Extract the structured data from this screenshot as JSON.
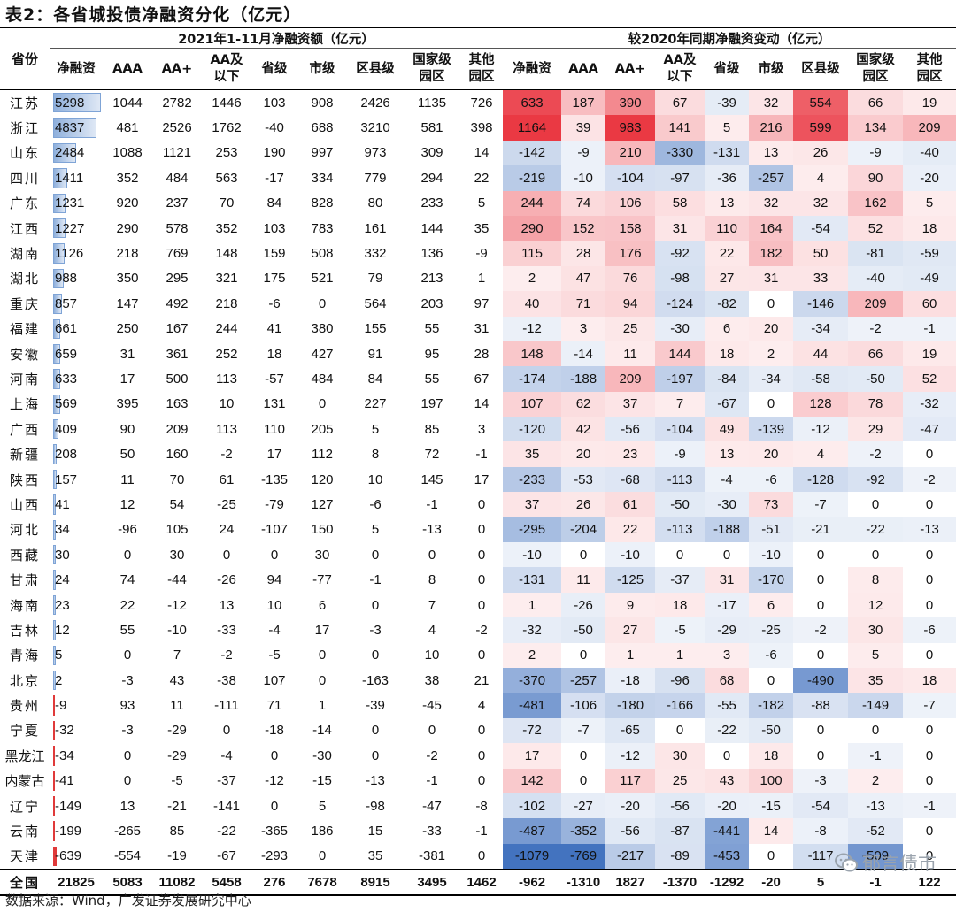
{
  "title": "表2：各省城投债净融资分化（亿元）",
  "source": "数据来源：Wind，广发证券发展研究中心",
  "watermark": "郁言债市",
  "header": {
    "province": "省份",
    "group_left": "2021年1-11月净融资额（亿元）",
    "group_right": "较2020年同期净融资变动（亿元）",
    "cols": [
      "净融资",
      "AAA",
      "AA+",
      "AA及以下",
      "省级",
      "市级",
      "区县级",
      "国家级园区",
      "其他园区"
    ]
  },
  "colors": {
    "pos": "#e8232f",
    "neg": "#2f64b8",
    "bar_pos": "#7fa4d6",
    "bar_neg": "#e03a3a"
  },
  "rows": [
    {
      "p": "江苏",
      "a": [
        5298,
        1044,
        2782,
        1446,
        103,
        908,
        2426,
        1135,
        726
      ],
      "c": [
        633,
        187,
        390,
        67,
        -39,
        32,
        554,
        66,
        19
      ]
    },
    {
      "p": "浙江",
      "a": [
        4837,
        481,
        2526,
        1762,
        -40,
        688,
        3210,
        581,
        398
      ],
      "c": [
        1164,
        39,
        983,
        141,
        5,
        216,
        599,
        134,
        209
      ]
    },
    {
      "p": "山东",
      "a": [
        2484,
        1088,
        1121,
        253,
        190,
        997,
        973,
        309,
        14
      ],
      "c": [
        -142,
        -9,
        210,
        -330,
        -131,
        13,
        26,
        -9,
        -40
      ]
    },
    {
      "p": "四川",
      "a": [
        1411,
        352,
        484,
        563,
        -17,
        334,
        779,
        294,
        22
      ],
      "c": [
        -219,
        -10,
        -104,
        -97,
        -36,
        -257,
        4,
        90,
        -20
      ]
    },
    {
      "p": "广东",
      "a": [
        1231,
        920,
        237,
        70,
        84,
        828,
        80,
        233,
        5
      ],
      "c": [
        244,
        74,
        106,
        58,
        13,
        32,
        32,
        162,
        5
      ]
    },
    {
      "p": "江西",
      "a": [
        1227,
        290,
        578,
        352,
        103,
        783,
        161,
        144,
        35
      ],
      "c": [
        290,
        152,
        158,
        31,
        110,
        164,
        -54,
        52,
        18
      ]
    },
    {
      "p": "湖南",
      "a": [
        1126,
        218,
        769,
        148,
        159,
        508,
        332,
        136,
        -9
      ],
      "c": [
        115,
        28,
        176,
        -92,
        22,
        182,
        50,
        -81,
        -59
      ]
    },
    {
      "p": "湖北",
      "a": [
        988,
        350,
        295,
        321,
        175,
        521,
        79,
        213,
        1
      ],
      "c": [
        2,
        47,
        76,
        -98,
        27,
        31,
        33,
        -40,
        -49
      ]
    },
    {
      "p": "重庆",
      "a": [
        857,
        147,
        492,
        218,
        -6,
        0,
        564,
        203,
        97
      ],
      "c": [
        40,
        71,
        94,
        -124,
        -82,
        0,
        -146,
        209,
        60
      ]
    },
    {
      "p": "福建",
      "a": [
        661,
        250,
        167,
        244,
        41,
        380,
        155,
        55,
        31
      ],
      "c": [
        -12,
        3,
        25,
        -30,
        6,
        20,
        -34,
        -2,
        -1
      ]
    },
    {
      "p": "安徽",
      "a": [
        659,
        31,
        361,
        252,
        18,
        427,
        91,
        95,
        28
      ],
      "c": [
        148,
        -14,
        11,
        144,
        18,
        2,
        44,
        66,
        19
      ]
    },
    {
      "p": "河南",
      "a": [
        633,
        17,
        500,
        113,
        -57,
        484,
        84,
        55,
        67
      ],
      "c": [
        -174,
        -188,
        209,
        -197,
        -84,
        -34,
        -58,
        -50,
        52
      ]
    },
    {
      "p": "上海",
      "a": [
        569,
        395,
        163,
        10,
        131,
        0,
        227,
        197,
        14
      ],
      "c": [
        107,
        62,
        37,
        7,
        -67,
        0,
        128,
        78,
        -32
      ]
    },
    {
      "p": "广西",
      "a": [
        409,
        90,
        209,
        113,
        110,
        205,
        5,
        85,
        3
      ],
      "c": [
        -120,
        42,
        -56,
        -104,
        49,
        -139,
        -12,
        29,
        -47
      ]
    },
    {
      "p": "新疆",
      "a": [
        208,
        50,
        160,
        -2,
        17,
        112,
        8,
        72,
        -1
      ],
      "c": [
        35,
        20,
        23,
        -9,
        13,
        20,
        4,
        -2,
        0
      ]
    },
    {
      "p": "陕西",
      "a": [
        157,
        11,
        70,
        61,
        -135,
        120,
        10,
        145,
        17
      ],
      "c": [
        -233,
        -53,
        -68,
        -113,
        -4,
        -6,
        -128,
        -92,
        -2
      ]
    },
    {
      "p": "山西",
      "a": [
        41,
        12,
        54,
        -25,
        -79,
        127,
        -6,
        -1,
        0
      ],
      "c": [
        37,
        26,
        61,
        -50,
        -30,
        73,
        -7,
        0,
        0
      ]
    },
    {
      "p": "河北",
      "a": [
        34,
        -96,
        105,
        24,
        -107,
        150,
        5,
        -13,
        0
      ],
      "c": [
        -295,
        -204,
        22,
        -113,
        -188,
        -51,
        -21,
        -22,
        -13
      ]
    },
    {
      "p": "西藏",
      "a": [
        30,
        0,
        30,
        0,
        0,
        30,
        0,
        0,
        0
      ],
      "c": [
        -10,
        0,
        -10,
        0,
        0,
        -10,
        0,
        0,
        0
      ]
    },
    {
      "p": "甘肃",
      "a": [
        24,
        74,
        -44,
        -26,
        94,
        -77,
        -1,
        8,
        0
      ],
      "c": [
        -131,
        11,
        -125,
        -37,
        31,
        -170,
        0,
        8,
        0
      ]
    },
    {
      "p": "海南",
      "a": [
        23,
        22,
        -12,
        13,
        10,
        6,
        0,
        7,
        0
      ],
      "c": [
        1,
        -26,
        9,
        18,
        -17,
        6,
        0,
        12,
        0
      ]
    },
    {
      "p": "吉林",
      "a": [
        12,
        55,
        -10,
        -33,
        -4,
        17,
        -3,
        4,
        -2
      ],
      "c": [
        -32,
        -50,
        27,
        -5,
        -29,
        -25,
        -2,
        30,
        -6
      ]
    },
    {
      "p": "青海",
      "a": [
        5,
        0,
        7,
        -2,
        -5,
        0,
        0,
        10,
        0
      ],
      "c": [
        2,
        0,
        1,
        1,
        3,
        -6,
        0,
        5,
        0
      ]
    },
    {
      "p": "北京",
      "a": [
        2,
        -3,
        43,
        -38,
        107,
        0,
        -163,
        38,
        21
      ],
      "c": [
        -370,
        -257,
        -18,
        -96,
        68,
        0,
        -490,
        35,
        18
      ]
    },
    {
      "p": "贵州",
      "a": [
        -9,
        93,
        11,
        -111,
        71,
        1,
        -39,
        -45,
        4
      ],
      "c": [
        -481,
        -106,
        -180,
        -166,
        -55,
        -182,
        -88,
        -149,
        -7
      ]
    },
    {
      "p": "宁夏",
      "a": [
        -32,
        -3,
        -29,
        0,
        -18,
        -14,
        0,
        0,
        0
      ],
      "c": [
        -72,
        -7,
        -65,
        0,
        -22,
        -50,
        0,
        0,
        0
      ]
    },
    {
      "p": "黑龙江",
      "a": [
        -34,
        0,
        -29,
        -4,
        0,
        -30,
        0,
        -2,
        0
      ],
      "c": [
        17,
        0,
        -12,
        30,
        0,
        18,
        0,
        -1,
        0
      ]
    },
    {
      "p": "内蒙古",
      "a": [
        -41,
        0,
        -5,
        -37,
        -12,
        -15,
        -13,
        -1,
        0
      ],
      "c": [
        142,
        0,
        117,
        25,
        43,
        100,
        -3,
        2,
        0
      ]
    },
    {
      "p": "辽宁",
      "a": [
        -149,
        13,
        -21,
        -141,
        0,
        5,
        -98,
        -47,
        -8
      ],
      "c": [
        -102,
        -27,
        -20,
        -56,
        -20,
        -15,
        -54,
        -13,
        -1
      ]
    },
    {
      "p": "云南",
      "a": [
        -199,
        -265,
        85,
        -22,
        -365,
        186,
        15,
        -33,
        -1
      ],
      "c": [
        -487,
        -352,
        -56,
        -87,
        -441,
        14,
        -8,
        -52,
        0
      ]
    },
    {
      "p": "天津",
      "a": [
        -639,
        -554,
        -19,
        -67,
        -293,
        0,
        35,
        -381,
        0
      ],
      "c": [
        -1079,
        -769,
        -217,
        -89,
        -453,
        0,
        -117,
        -509,
        0
      ]
    }
  ],
  "total": {
    "p": "全国",
    "a": [
      "21825",
      "5083",
      "11082",
      "5458",
      "276",
      "7678",
      "8915",
      "3495",
      "1462"
    ],
    "c": [
      "-962",
      "-1310",
      "1827",
      "-1370",
      "-1292",
      "-20",
      "5",
      "-1",
      "122"
    ]
  }
}
